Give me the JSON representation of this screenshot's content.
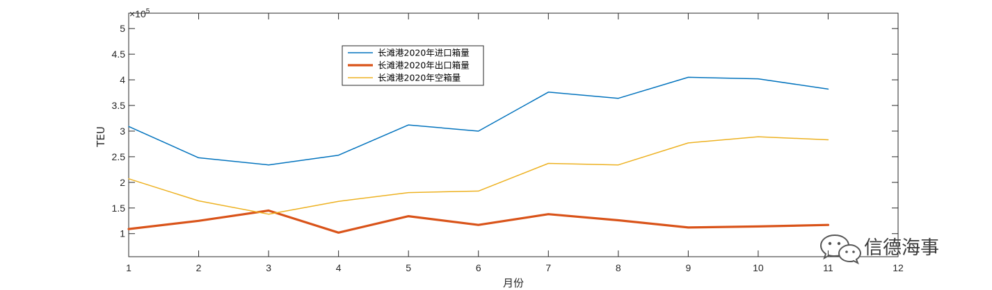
{
  "chart_data": {
    "type": "line",
    "xlabel": "月份",
    "ylabel": "TEU",
    "exponent_label": "×10",
    "exponent_power": "5",
    "xlim": [
      1,
      12
    ],
    "ylim": [
      0.55,
      5.3
    ],
    "xticks": [
      1,
      2,
      3,
      4,
      5,
      6,
      7,
      8,
      9,
      10,
      11,
      12
    ],
    "yticks": [
      1,
      1.5,
      2,
      2.5,
      3,
      3.5,
      4,
      4.5,
      5
    ],
    "ytick_labels": [
      "1",
      "1.5",
      "2",
      "2.5",
      "3",
      "3.5",
      "4",
      "4.5",
      "5"
    ],
    "x": [
      1,
      2,
      3,
      4,
      5,
      6,
      7,
      8,
      9,
      10,
      11
    ],
    "series": [
      {
        "name": "长滩港2020年进口箱量",
        "color": "#0072BD",
        "width": 1.5,
        "values": [
          3.09,
          2.48,
          2.34,
          2.53,
          3.12,
          3.0,
          3.76,
          3.64,
          4.05,
          4.02,
          3.82
        ]
      },
      {
        "name": "长滩港2020年出口箱量",
        "color": "#D95319",
        "width": 3.2,
        "values": [
          1.09,
          1.25,
          1.45,
          1.02,
          1.34,
          1.17,
          1.38,
          1.26,
          1.12,
          1.14,
          1.17
        ]
      },
      {
        "name": "长滩港2020年空箱量",
        "color": "#EDB120",
        "width": 1.5,
        "values": [
          2.07,
          1.64,
          1.38,
          1.63,
          1.8,
          1.83,
          2.37,
          2.34,
          2.77,
          2.89,
          2.83
        ]
      }
    ],
    "legend_position": "top-left-center",
    "grid": false
  },
  "watermark": {
    "text": "信德海事",
    "icon": "wechat-icon"
  }
}
